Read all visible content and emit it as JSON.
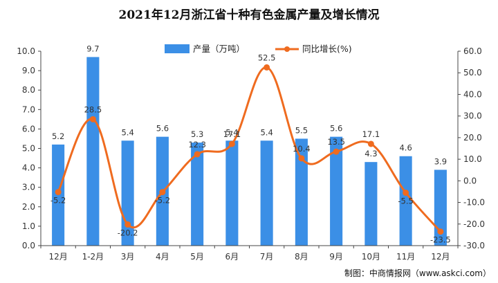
{
  "chart_data": {
    "type": "bar",
    "title": "2021年12月浙江省十种有色金属产量及增长情况",
    "categories": [
      "12月",
      "1-2月",
      "3月",
      "4月",
      "5月",
      "6月",
      "7月",
      "8月",
      "9月",
      "10月",
      "11月",
      "12月"
    ],
    "series": [
      {
        "name": "产量（万吨）",
        "type": "bar",
        "axis": "left",
        "color": "#3b8fe6",
        "values": [
          5.2,
          9.7,
          5.4,
          5.6,
          5.3,
          5.4,
          5.4,
          5.5,
          5.6,
          4.3,
          4.6,
          3.9
        ]
      },
      {
        "name": "同比增长(%)",
        "type": "line",
        "axis": "right",
        "color": "#ef6b1f",
        "values": [
          -5.2,
          28.5,
          -20.2,
          -5.2,
          12.3,
          17.1,
          52.5,
          10.4,
          13.5,
          17.1,
          -5.5,
          -23.5
        ]
      }
    ],
    "y_left": {
      "min": 0,
      "max": 10,
      "step": 1,
      "ticks": [
        "0.0",
        "1.0",
        "2.0",
        "3.0",
        "4.0",
        "5.0",
        "6.0",
        "7.0",
        "8.0",
        "9.0",
        "10.0"
      ]
    },
    "y_right": {
      "min": -30,
      "max": 60,
      "step": 10,
      "ticks": [
        "-30.0",
        "-20.0",
        "-10.0",
        "0.0",
        "10.0",
        "20.0",
        "30.0",
        "40.0",
        "50.0",
        "60.0"
      ]
    },
    "grid": false,
    "legend_position": "top-center",
    "source": "制图：中商情报网（www.askci.com）"
  }
}
